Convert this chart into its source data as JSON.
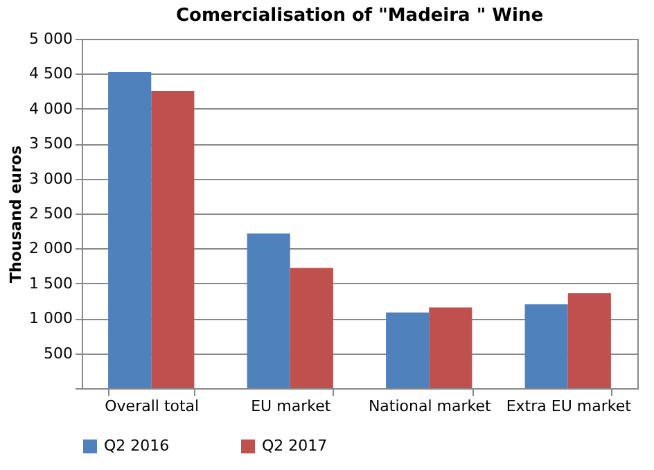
{
  "chart_data": {
    "type": "bar",
    "title": "Comercialisation of \"Madeira \" Wine",
    "ylabel": "Thousand euros",
    "categories": [
      "Overall total",
      "EU market",
      "National market",
      "Extra EU market"
    ],
    "series": [
      {
        "name": "Q2 2016",
        "color": "#4f81bd",
        "values": [
          4525,
          2215,
          1085,
          1200
        ]
      },
      {
        "name": "Q2 2017",
        "color": "#c0504d",
        "values": [
          4255,
          1720,
          1155,
          1360
        ]
      }
    ],
    "ylim": [
      0,
      5000
    ],
    "yticks": [
      {
        "value": 0,
        "label": null
      },
      {
        "value": 500,
        "label": "500"
      },
      {
        "value": 1000,
        "label": "1 000"
      },
      {
        "value": 1500,
        "label": "1 500"
      },
      {
        "value": 2000,
        "label": "2 000"
      },
      {
        "value": 2500,
        "label": "2 500"
      },
      {
        "value": 3000,
        "label": "3 000"
      },
      {
        "value": 3500,
        "label": "3 500"
      },
      {
        "value": 4000,
        "label": "4 000"
      },
      {
        "value": 4500,
        "label": "4 500"
      },
      {
        "value": 5000,
        "label": "5 000"
      }
    ],
    "grid": "y",
    "legend": "bottom"
  }
}
